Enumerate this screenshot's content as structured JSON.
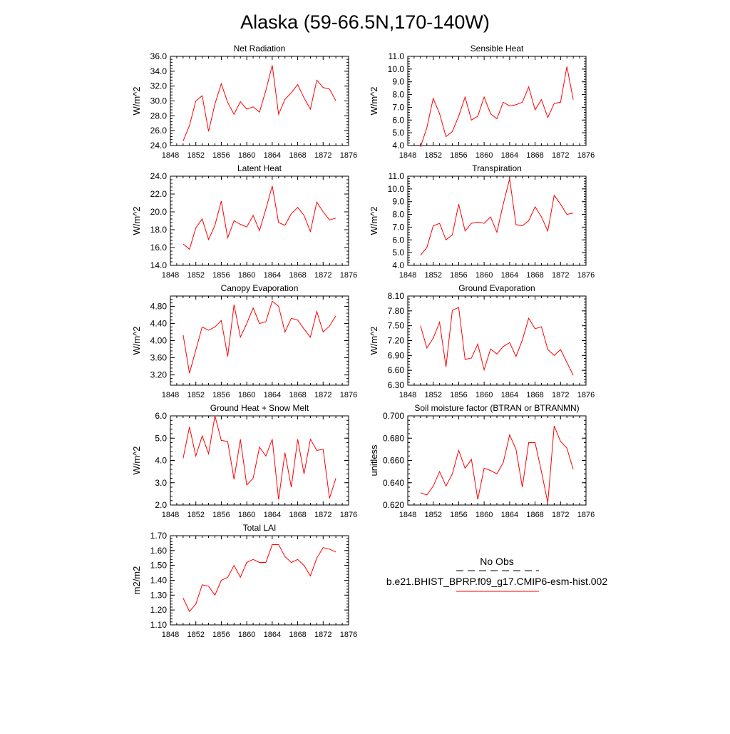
{
  "title": "Alaska (59-66.5N,170-140W)",
  "legend": {
    "obs_label": "No Obs",
    "model_label": "b.e21.BHIST_BPRP.f09_g17.CMIP6-esm-hist.002",
    "obs_color": "#000000",
    "model_color": "#ff0000"
  },
  "chart_data": [
    {
      "type": "line",
      "title": "Net Radiation",
      "ylabel": "W/m^2",
      "xlim": [
        1848,
        1876
      ],
      "ylim": [
        24,
        36
      ],
      "xticks": [
        1848,
        1852,
        1856,
        1860,
        1864,
        1868,
        1872,
        1876
      ],
      "yticks": [
        "24.0",
        "26.0",
        "28.0",
        "30.0",
        "32.0",
        "34.0",
        "36.0"
      ],
      "x": [
        1850,
        1851,
        1852,
        1853,
        1854,
        1855,
        1856,
        1857,
        1858,
        1859,
        1860,
        1861,
        1862,
        1863,
        1864,
        1865,
        1866,
        1867,
        1868,
        1869,
        1870,
        1871,
        1872,
        1873,
        1874
      ],
      "series": [
        {
          "color": "#ff0000",
          "values": [
            24.6,
            26.7,
            30.0,
            30.7,
            25.9,
            29.6,
            32.3,
            29.8,
            28.2,
            29.9,
            28.9,
            29.2,
            28.5,
            31.4,
            34.8,
            28.2,
            30.2,
            31.1,
            32.2,
            30.4,
            28.9,
            32.8,
            31.8,
            31.6,
            30.0
          ]
        }
      ]
    },
    {
      "type": "line",
      "title": "Sensible Heat",
      "ylabel": "W/m^2",
      "xlim": [
        1848,
        1876
      ],
      "ylim": [
        4,
        11
      ],
      "xticks": [
        1848,
        1852,
        1856,
        1860,
        1864,
        1868,
        1872,
        1876
      ],
      "yticks": [
        "4.0",
        "5.0",
        "6.0",
        "7.0",
        "8.0",
        "9.0",
        "10.0",
        "11.0"
      ],
      "x": [
        1850,
        1851,
        1852,
        1853,
        1854,
        1855,
        1856,
        1857,
        1858,
        1859,
        1860,
        1861,
        1862,
        1863,
        1864,
        1865,
        1866,
        1867,
        1868,
        1869,
        1870,
        1871,
        1872,
        1873,
        1874
      ],
      "series": [
        {
          "color": "#ff0000",
          "values": [
            3.9,
            5.4,
            7.7,
            6.5,
            4.7,
            5.1,
            6.3,
            7.8,
            6.0,
            6.3,
            7.8,
            6.5,
            6.1,
            7.4,
            7.1,
            7.2,
            7.4,
            8.6,
            6.8,
            7.6,
            6.2,
            7.3,
            7.4,
            10.2,
            7.6
          ]
        }
      ]
    },
    {
      "type": "line",
      "title": "Latent Heat",
      "ylabel": "W/m^2",
      "xlim": [
        1848,
        1876
      ],
      "ylim": [
        14,
        24
      ],
      "xticks": [
        1848,
        1852,
        1856,
        1860,
        1864,
        1868,
        1872,
        1876
      ],
      "yticks": [
        "14.0",
        "16.0",
        "18.0",
        "20.0",
        "22.0",
        "24.0"
      ],
      "x": [
        1850,
        1851,
        1852,
        1853,
        1854,
        1855,
        1856,
        1857,
        1858,
        1859,
        1860,
        1861,
        1862,
        1863,
        1864,
        1865,
        1866,
        1867,
        1868,
        1869,
        1870,
        1871,
        1872,
        1873,
        1874
      ],
      "series": [
        {
          "color": "#ff0000",
          "values": [
            16.4,
            15.8,
            18.2,
            19.2,
            16.9,
            18.5,
            21.2,
            17.1,
            19.0,
            18.6,
            18.3,
            19.6,
            17.9,
            20.3,
            22.9,
            18.8,
            18.5,
            19.8,
            20.5,
            19.6,
            17.8,
            21.1,
            20.0,
            19.1,
            19.3
          ]
        }
      ]
    },
    {
      "type": "line",
      "title": "Transpiration",
      "ylabel": "W/m^2",
      "xlim": [
        1848,
        1876
      ],
      "ylim": [
        4,
        11
      ],
      "xticks": [
        1848,
        1852,
        1856,
        1860,
        1864,
        1868,
        1872,
        1876
      ],
      "yticks": [
        "4.0",
        "5.0",
        "6.0",
        "7.0",
        "8.0",
        "9.0",
        "10.0",
        "11.0"
      ],
      "x": [
        1850,
        1851,
        1852,
        1853,
        1854,
        1855,
        1856,
        1857,
        1858,
        1859,
        1860,
        1861,
        1862,
        1863,
        1864,
        1865,
        1866,
        1867,
        1868,
        1869,
        1870,
        1871,
        1872,
        1873,
        1874
      ],
      "series": [
        {
          "color": "#ff0000",
          "values": [
            4.8,
            5.4,
            7.1,
            7.3,
            6.0,
            6.4,
            8.8,
            6.7,
            7.3,
            7.4,
            7.3,
            7.8,
            6.6,
            8.8,
            10.8,
            7.2,
            7.1,
            7.5,
            8.6,
            7.8,
            6.7,
            9.5,
            8.8,
            8.0,
            8.1
          ]
        }
      ]
    },
    {
      "type": "line",
      "title": "Canopy Evaporation",
      "ylabel": "W/m^2",
      "xlim": [
        1848,
        1876
      ],
      "ylim": [
        2.96,
        5.04
      ],
      "xticks": [
        1848,
        1852,
        1856,
        1860,
        1864,
        1868,
        1872,
        1876
      ],
      "yticks": [
        "3.20",
        "3.60",
        "4.00",
        "4.40",
        "4.80"
      ],
      "x": [
        1850,
        1851,
        1852,
        1853,
        1854,
        1855,
        1856,
        1857,
        1858,
        1859,
        1860,
        1861,
        1862,
        1863,
        1864,
        1865,
        1866,
        1867,
        1868,
        1869,
        1870,
        1871,
        1872,
        1873,
        1874
      ],
      "series": [
        {
          "color": "#ff0000",
          "values": [
            4.13,
            3.24,
            3.78,
            4.32,
            4.24,
            4.32,
            4.47,
            3.63,
            4.84,
            4.08,
            4.4,
            4.76,
            4.4,
            4.44,
            4.92,
            4.8,
            4.2,
            4.52,
            4.48,
            4.27,
            4.08,
            4.68,
            4.2,
            4.34,
            4.58
          ]
        }
      ]
    },
    {
      "type": "line",
      "title": "Ground Evaporation",
      "ylabel": "W/m^2",
      "xlim": [
        1848,
        1876
      ],
      "ylim": [
        6.3,
        8.1
      ],
      "xticks": [
        1848,
        1852,
        1856,
        1860,
        1864,
        1868,
        1872,
        1876
      ],
      "yticks": [
        "6.30",
        "6.60",
        "6.90",
        "7.20",
        "7.50",
        "7.80",
        "8.10"
      ],
      "x": [
        1850,
        1851,
        1852,
        1853,
        1854,
        1855,
        1856,
        1857,
        1858,
        1859,
        1860,
        1861,
        1862,
        1863,
        1864,
        1865,
        1866,
        1867,
        1868,
        1869,
        1870,
        1871,
        1872,
        1873,
        1874
      ],
      "series": [
        {
          "color": "#ff0000",
          "values": [
            7.5,
            7.05,
            7.25,
            7.57,
            6.67,
            7.81,
            7.87,
            6.82,
            6.85,
            7.13,
            6.61,
            7.03,
            6.93,
            7.08,
            7.16,
            6.88,
            7.21,
            7.65,
            7.44,
            7.48,
            7.02,
            6.9,
            7.02,
            6.76,
            6.5
          ]
        }
      ]
    },
    {
      "type": "line",
      "title": "Ground Heat + Snow Melt",
      "ylabel": "W/m^2",
      "xlim": [
        1848,
        1876
      ],
      "ylim": [
        2,
        6
      ],
      "xticks": [
        1848,
        1852,
        1856,
        1860,
        1864,
        1868,
        1872,
        1876
      ],
      "yticks": [
        "2.0",
        "3.0",
        "4.0",
        "5.0",
        "6.0"
      ],
      "x": [
        1850,
        1851,
        1852,
        1853,
        1854,
        1855,
        1856,
        1857,
        1858,
        1859,
        1860,
        1861,
        1862,
        1863,
        1864,
        1865,
        1866,
        1867,
        1868,
        1869,
        1870,
        1871,
        1872,
        1873,
        1874
      ],
      "series": [
        {
          "color": "#ff0000",
          "values": [
            4.1,
            5.5,
            4.2,
            5.1,
            4.3,
            6.0,
            4.9,
            4.85,
            3.15,
            4.95,
            2.9,
            3.2,
            4.6,
            4.2,
            4.95,
            2.25,
            4.35,
            2.8,
            4.95,
            3.4,
            4.95,
            4.45,
            4.5,
            2.3,
            3.2
          ]
        }
      ]
    },
    {
      "type": "line",
      "title": "Soil moisture factor (BTRAN or BTRANMN)",
      "ylabel": "unitless",
      "xlim": [
        1848,
        1876
      ],
      "ylim": [
        0.62,
        0.7
      ],
      "xticks": [
        1848,
        1852,
        1856,
        1860,
        1864,
        1868,
        1872,
        1876
      ],
      "yticks": [
        "0.620",
        "0.640",
        "0.660",
        "0.680",
        "0.700"
      ],
      "x": [
        1850,
        1851,
        1852,
        1853,
        1854,
        1855,
        1856,
        1857,
        1858,
        1859,
        1860,
        1861,
        1862,
        1863,
        1864,
        1865,
        1866,
        1867,
        1868,
        1869,
        1870,
        1871,
        1872,
        1873,
        1874
      ],
      "series": [
        {
          "color": "#ff0000",
          "values": [
            0.631,
            0.629,
            0.637,
            0.65,
            0.637,
            0.648,
            0.669,
            0.653,
            0.661,
            0.625,
            0.653,
            0.651,
            0.648,
            0.658,
            0.683,
            0.67,
            0.636,
            0.676,
            0.676,
            0.65,
            0.622,
            0.691,
            0.677,
            0.671,
            0.652
          ]
        }
      ]
    },
    {
      "type": "line",
      "title": "Total LAI",
      "ylabel": "m2/m2",
      "xlim": [
        1848,
        1876
      ],
      "ylim": [
        1.1,
        1.7
      ],
      "xticks": [
        1848,
        1852,
        1856,
        1860,
        1864,
        1868,
        1872,
        1876
      ],
      "yticks": [
        "1.10",
        "1.20",
        "1.30",
        "1.40",
        "1.50",
        "1.60",
        "1.70"
      ],
      "x": [
        1850,
        1851,
        1852,
        1853,
        1854,
        1855,
        1856,
        1857,
        1858,
        1859,
        1860,
        1861,
        1862,
        1863,
        1864,
        1865,
        1866,
        1867,
        1868,
        1869,
        1870,
        1871,
        1872,
        1873,
        1874
      ],
      "series": [
        {
          "color": "#ff0000",
          "values": [
            1.28,
            1.19,
            1.24,
            1.37,
            1.36,
            1.3,
            1.4,
            1.42,
            1.5,
            1.42,
            1.52,
            1.54,
            1.52,
            1.52,
            1.64,
            1.64,
            1.56,
            1.52,
            1.54,
            1.5,
            1.43,
            1.55,
            1.62,
            1.61,
            1.59
          ]
        }
      ]
    }
  ]
}
